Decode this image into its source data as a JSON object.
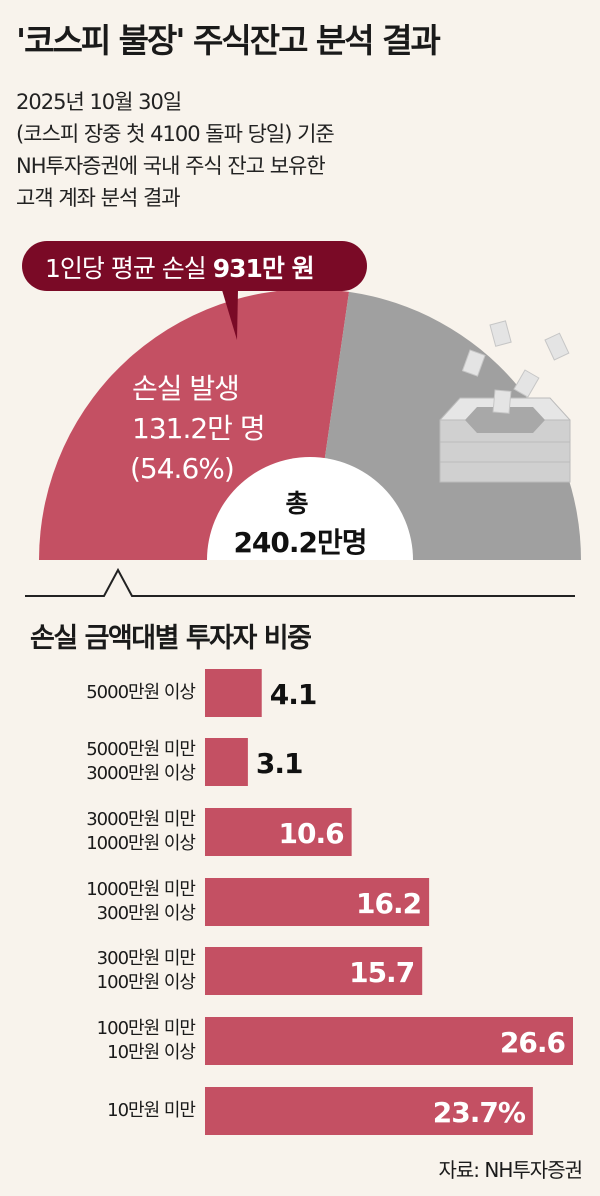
{
  "title": "'코스피 불장' 주식잔고 분석 결과",
  "subtitle_lines": [
    "2025년 10월 30일",
    "(코스피 장중 첫 4100 돌파 당일) 기준",
    "NH투자증권에 국내 주식 잔고 보유한",
    "고객 계좌 분석 결과"
  ],
  "colors": {
    "loss": "#c45063",
    "other": "#a0a0a0",
    "callout": "#7a0a26",
    "background": "#f8f3ec"
  },
  "chart_data": [
    {
      "type": "pie",
      "shape": "semicircle-donut",
      "callout": {
        "prefix": "1인당 평균 손실 ",
        "value": "931만 원"
      },
      "slices": [
        {
          "label": "손실 발생",
          "value_text": "131.2만 명",
          "percent_text": "(54.6%)",
          "percent": 54.6
        },
        {
          "label": "",
          "percent": 45.4
        }
      ],
      "center": {
        "label": "총",
        "value": "240.2만명"
      },
      "icon": "stacked-rice-cake-pot-icon"
    },
    {
      "type": "bar",
      "orientation": "horizontal",
      "title": "손실 금액대별 투자자 비중",
      "unit": "%",
      "categories": [
        [
          "5000만원 이상"
        ],
        [
          "5000만원 미만",
          "3000만원 이상"
        ],
        [
          "3000만원 미만",
          "1000만원 이상"
        ],
        [
          "1000만원 미만",
          "300만원 이상"
        ],
        [
          "300만원 미만",
          "100만원 이상"
        ],
        [
          "100만원 미만",
          "10만원 이상"
        ],
        [
          "10만원 미만"
        ]
      ],
      "values": [
        4.1,
        3.1,
        10.6,
        16.2,
        15.7,
        26.6,
        23.7
      ],
      "data_labels": [
        "4.1",
        "3.1",
        "10.6",
        "16.2",
        "15.7",
        "26.6",
        "23.7%"
      ]
    }
  ],
  "source": "자료: NH투자증권"
}
